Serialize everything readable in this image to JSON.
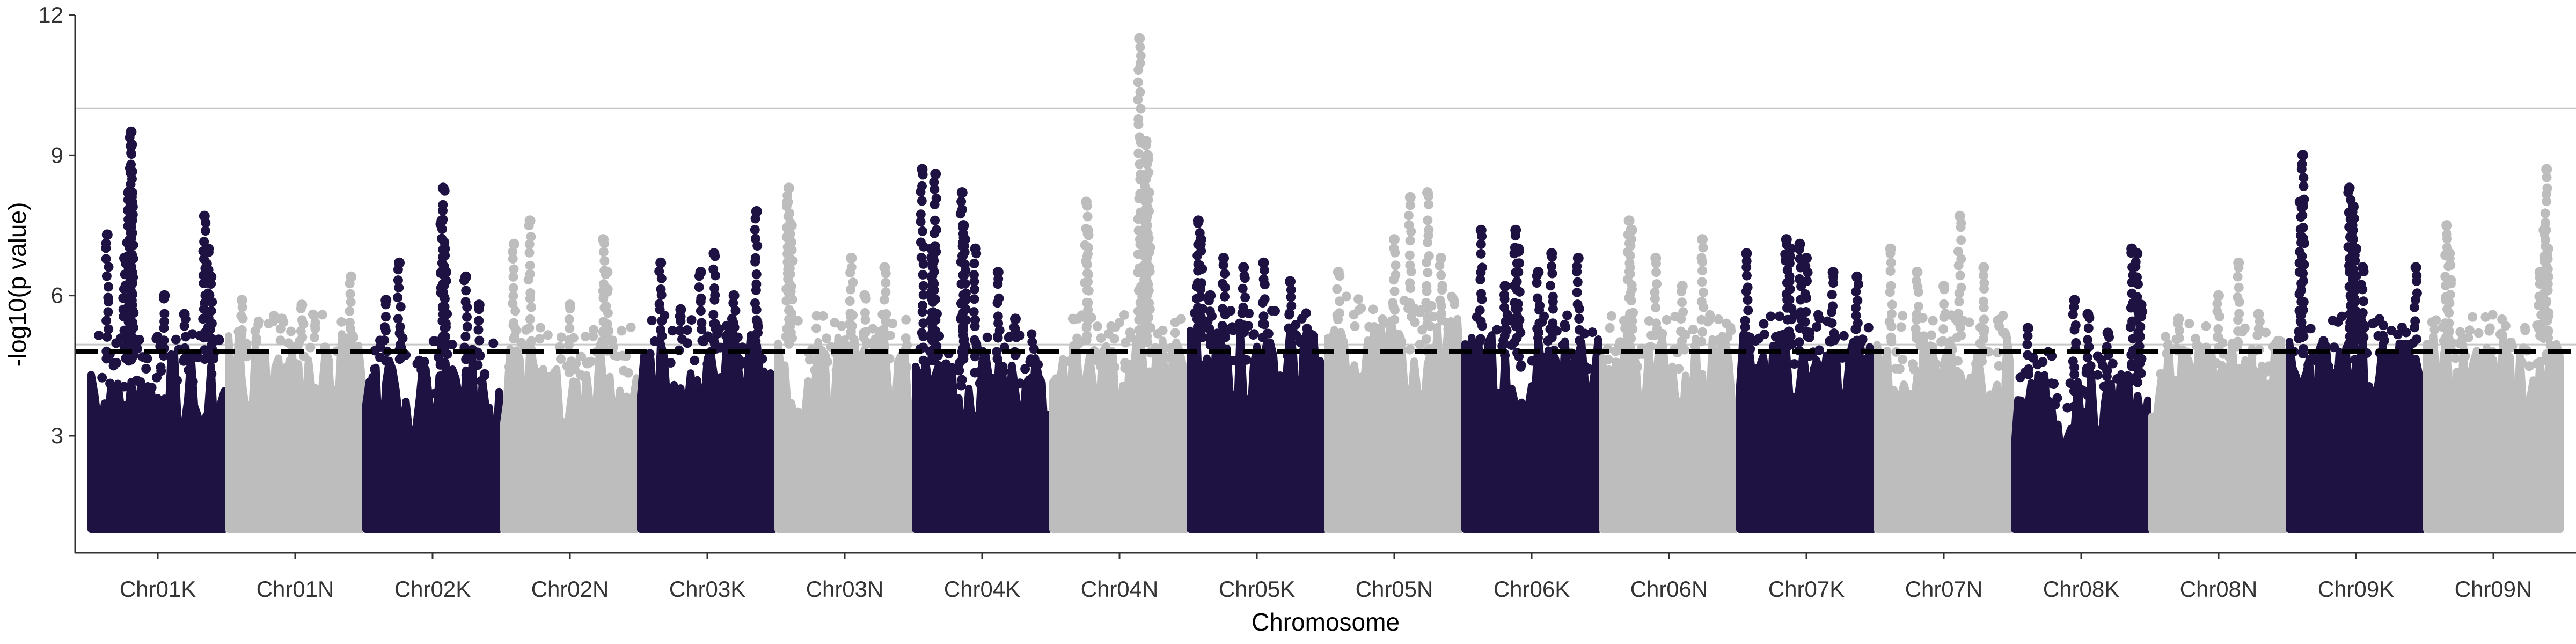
{
  "chart_data": {
    "type": "scatter",
    "subtype": "manhattan",
    "title": "",
    "xlabel": "Chromosome",
    "ylabel": "-log10(p value)",
    "ylim": [
      0,
      12
    ],
    "yticks": [
      3,
      6,
      9,
      12
    ],
    "categories": [
      "Chr01K",
      "Chr01N",
      "Chr02K",
      "Chr02N",
      "Chr03K",
      "Chr03N",
      "Chr04K",
      "Chr04N",
      "Chr05K",
      "Chr05N",
      "Chr06K",
      "Chr06N",
      "Chr07K",
      "Chr07N",
      "Chr08K",
      "Chr08N",
      "Chr09K",
      "Chr09N"
    ],
    "point_colors": [
      "#1d1242",
      "#bdbdbd"
    ],
    "background_floor": 1.0,
    "thresholds": [
      {
        "value": 10.0,
        "style": "solid",
        "color": "#c8c8c8"
      },
      {
        "value": 4.95,
        "style": "solid",
        "color": "#c8c8c8"
      },
      {
        "value": 4.8,
        "style": "dashed",
        "color": "#000000"
      }
    ],
    "series": [
      {
        "chromosome": "Chr01K",
        "band_top": 4.6,
        "peaks": [
          [
            0.12,
            7.3
          ],
          [
            0.28,
            8.2
          ],
          [
            0.3,
            9.5
          ],
          [
            0.3,
            9.2
          ],
          [
            0.31,
            7.9
          ],
          [
            0.29,
            7.5
          ],
          [
            0.25,
            6.8
          ],
          [
            0.55,
            6.0
          ],
          [
            0.85,
            7.7
          ],
          [
            0.88,
            7.0
          ],
          [
            0.9,
            6.4
          ],
          [
            0.7,
            5.6
          ]
        ]
      },
      {
        "chromosome": "Chr01N",
        "band_top": 5.0,
        "peaks": [
          [
            0.1,
            5.9
          ],
          [
            0.55,
            5.8
          ],
          [
            0.92,
            6.4
          ],
          [
            0.4,
            5.5
          ]
        ]
      },
      {
        "chromosome": "Chr02K",
        "band_top": 4.5,
        "peaks": [
          [
            0.25,
            6.7
          ],
          [
            0.58,
            8.3
          ],
          [
            0.57,
            7.6
          ],
          [
            0.59,
            7.0
          ],
          [
            0.6,
            6.5
          ],
          [
            0.75,
            6.4
          ],
          [
            0.15,
            5.9
          ],
          [
            0.85,
            5.8
          ]
        ]
      },
      {
        "chromosome": "Chr02N",
        "band_top": 4.8,
        "peaks": [
          [
            0.08,
            7.1
          ],
          [
            0.2,
            7.6
          ],
          [
            0.75,
            7.2
          ],
          [
            0.78,
            6.5
          ],
          [
            0.5,
            5.8
          ]
        ]
      },
      {
        "chromosome": "Chr03K",
        "band_top": 5.0,
        "peaks": [
          [
            0.15,
            6.7
          ],
          [
            0.45,
            6.5
          ],
          [
            0.55,
            6.9
          ],
          [
            0.87,
            7.8
          ],
          [
            0.7,
            6.0
          ],
          [
            0.3,
            5.7
          ]
        ]
      },
      {
        "chromosome": "Chr03N",
        "band_top": 5.0,
        "peaks": [
          [
            0.08,
            8.3
          ],
          [
            0.07,
            8.0
          ],
          [
            0.1,
            7.5
          ],
          [
            0.55,
            6.8
          ],
          [
            0.8,
            6.6
          ],
          [
            0.65,
            6.0
          ]
        ]
      },
      {
        "chromosome": "Chr04K",
        "band_top": 4.6,
        "peaks": [
          [
            0.05,
            8.7
          ],
          [
            0.15,
            8.6
          ],
          [
            0.12,
            7.0
          ],
          [
            0.13,
            6.8
          ],
          [
            0.35,
            8.2
          ],
          [
            0.36,
            7.5
          ],
          [
            0.37,
            7.2
          ],
          [
            0.45,
            7.0
          ],
          [
            0.62,
            6.5
          ],
          [
            0.75,
            5.5
          ]
        ]
      },
      {
        "chromosome": "Chr04N",
        "band_top": 5.0,
        "peaks": [
          [
            0.25,
            8.0
          ],
          [
            0.26,
            7.4
          ],
          [
            0.65,
            11.5
          ],
          [
            0.7,
            9.3
          ],
          [
            0.71,
            9.0
          ],
          [
            0.72,
            8.2
          ],
          [
            0.7,
            7.8
          ],
          [
            0.69,
            7.0
          ],
          [
            0.68,
            6.5
          ]
        ]
      },
      {
        "chromosome": "Chr05K",
        "band_top": 5.1,
        "peaks": [
          [
            0.06,
            7.6
          ],
          [
            0.08,
            7.2
          ],
          [
            0.25,
            6.8
          ],
          [
            0.4,
            6.6
          ],
          [
            0.55,
            6.7
          ],
          [
            0.75,
            6.3
          ],
          [
            0.15,
            6.0
          ]
        ]
      },
      {
        "chromosome": "Chr05N",
        "band_top": 5.4,
        "peaks": [
          [
            0.08,
            6.5
          ],
          [
            0.5,
            7.2
          ],
          [
            0.62,
            8.1
          ],
          [
            0.75,
            8.2
          ],
          [
            0.85,
            6.8
          ]
        ]
      },
      {
        "chromosome": "Chr06K",
        "band_top": 5.0,
        "peaks": [
          [
            0.12,
            7.4
          ],
          [
            0.38,
            7.4
          ],
          [
            0.4,
            7.0
          ],
          [
            0.55,
            6.5
          ],
          [
            0.65,
            6.9
          ],
          [
            0.85,
            6.8
          ],
          [
            0.3,
            6.2
          ]
        ]
      },
      {
        "chromosome": "Chr06N",
        "band_top": 5.0,
        "peaks": [
          [
            0.2,
            7.6
          ],
          [
            0.22,
            7.4
          ],
          [
            0.4,
            6.8
          ],
          [
            0.75,
            7.2
          ],
          [
            0.6,
            6.2
          ]
        ]
      },
      {
        "chromosome": "Chr07K",
        "band_top": 5.0,
        "peaks": [
          [
            0.05,
            6.9
          ],
          [
            0.35,
            7.2
          ],
          [
            0.38,
            7.0
          ],
          [
            0.45,
            7.1
          ],
          [
            0.5,
            6.8
          ],
          [
            0.7,
            6.5
          ],
          [
            0.88,
            6.4
          ]
        ]
      },
      {
        "chromosome": "Chr07N",
        "band_top": 5.0,
        "peaks": [
          [
            0.1,
            7.0
          ],
          [
            0.3,
            6.5
          ],
          [
            0.5,
            6.2
          ],
          [
            0.62,
            7.7
          ],
          [
            0.8,
            6.6
          ]
        ]
      },
      {
        "chromosome": "Chr08K",
        "band_top": 4.2,
        "peaks": [
          [
            0.1,
            5.3
          ],
          [
            0.45,
            5.9
          ],
          [
            0.55,
            5.6
          ],
          [
            0.7,
            5.2
          ],
          [
            0.88,
            7.0
          ],
          [
            0.92,
            6.9
          ],
          [
            0.95,
            5.8
          ]
        ]
      },
      {
        "chromosome": "Chr08N",
        "band_top": 4.8,
        "peaks": [
          [
            0.2,
            5.5
          ],
          [
            0.5,
            6.0
          ],
          [
            0.65,
            6.7
          ],
          [
            0.8,
            5.6
          ]
        ]
      },
      {
        "chromosome": "Chr09K",
        "band_top": 5.0,
        "peaks": [
          [
            0.1,
            9.0
          ],
          [
            0.08,
            8.0
          ],
          [
            0.45,
            8.3
          ],
          [
            0.48,
            7.9
          ],
          [
            0.47,
            7.5
          ],
          [
            0.5,
            7.0
          ],
          [
            0.55,
            6.6
          ],
          [
            0.95,
            6.6
          ]
        ]
      },
      {
        "chromosome": "Chr09N",
        "band_top": 5.0,
        "peaks": [
          [
            0.15,
            7.5
          ],
          [
            0.17,
            6.9
          ],
          [
            0.9,
            8.7
          ],
          [
            0.88,
            7.4
          ],
          [
            0.91,
            7.0
          ],
          [
            0.85,
            6.5
          ]
        ]
      }
    ]
  }
}
